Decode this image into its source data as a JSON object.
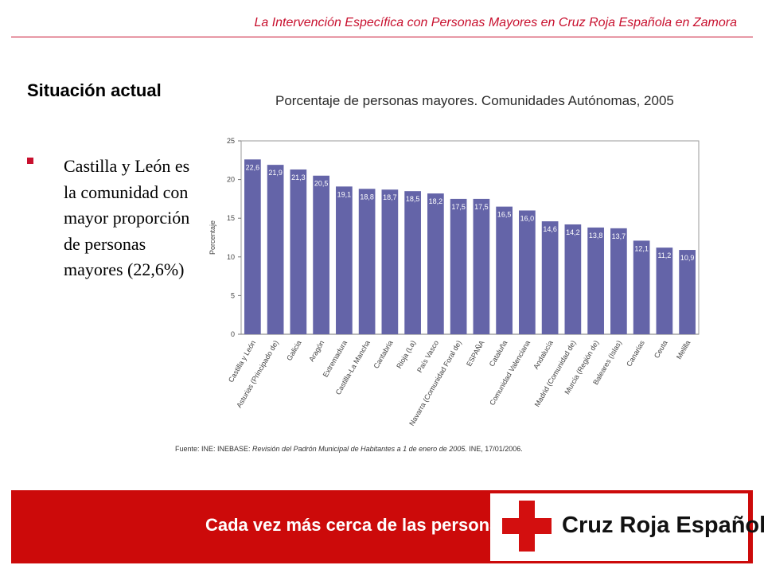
{
  "header": {
    "title": "La Intervención Específica con Personas Mayores  en Cruz Roja Española en Zamora"
  },
  "section": {
    "title": "Situación actual",
    "bullet_text": "Castilla y León es la comunidad con mayor proporción de personas mayores (22,6%)"
  },
  "chart_data": {
    "type": "bar",
    "title": "Porcentaje de personas mayores. Comunidades Autónomas, 2005",
    "xlabel": "",
    "ylabel": "Porcentaje",
    "ylim": [
      0,
      25
    ],
    "yticks": [
      0,
      5,
      10,
      15,
      20,
      25
    ],
    "grid": false,
    "bar_color": "#6464a8",
    "categories": [
      "Castilla y León",
      "Asturias (Principado de)",
      "Galicia",
      "Aragón",
      "Extremadura",
      "Castilla-La Mancha",
      "Cantabria",
      "Rioja (La)",
      "País Vasco",
      "Navarra (Comunidad Foral de)",
      "ESPAÑA",
      "Cataluña",
      "Comunidad Valenciana",
      "Andalucía",
      "Madrid (Comunidad de)",
      "Murcia (Región de)",
      "Baleares (Islas)",
      "Canarias",
      "Ceuta",
      "Melilla"
    ],
    "values": [
      22.6,
      21.9,
      21.3,
      20.5,
      19.1,
      18.8,
      18.7,
      18.5,
      18.2,
      17.5,
      17.5,
      16.5,
      16.0,
      14.6,
      14.2,
      13.8,
      13.7,
      12.1,
      11.2,
      10.9
    ],
    "data_labels": [
      "22,6",
      "21,9",
      "21,3",
      "20,5",
      "19,1",
      "18,8",
      "18,7",
      "18,5",
      "18,2",
      "17,5",
      "17,5",
      "16,5",
      "16,0",
      "14,6",
      "14,2",
      "13,8",
      "13,7",
      "12,1",
      "11,2",
      "10,9"
    ]
  },
  "source": {
    "prefix": "Fuente: INE: INEBASE: ",
    "italic": "Revisión del Padrón Municipal de Habitantes a 1 de enero de 2005.",
    "suffix": " INE, 17/01/2006."
  },
  "footer": {
    "slogan": "Cada vez más cerca de las personas",
    "brand": "Cruz Roja Española",
    "logo_icon": "red-cross-icon",
    "band_color": "#cc0a0a"
  }
}
